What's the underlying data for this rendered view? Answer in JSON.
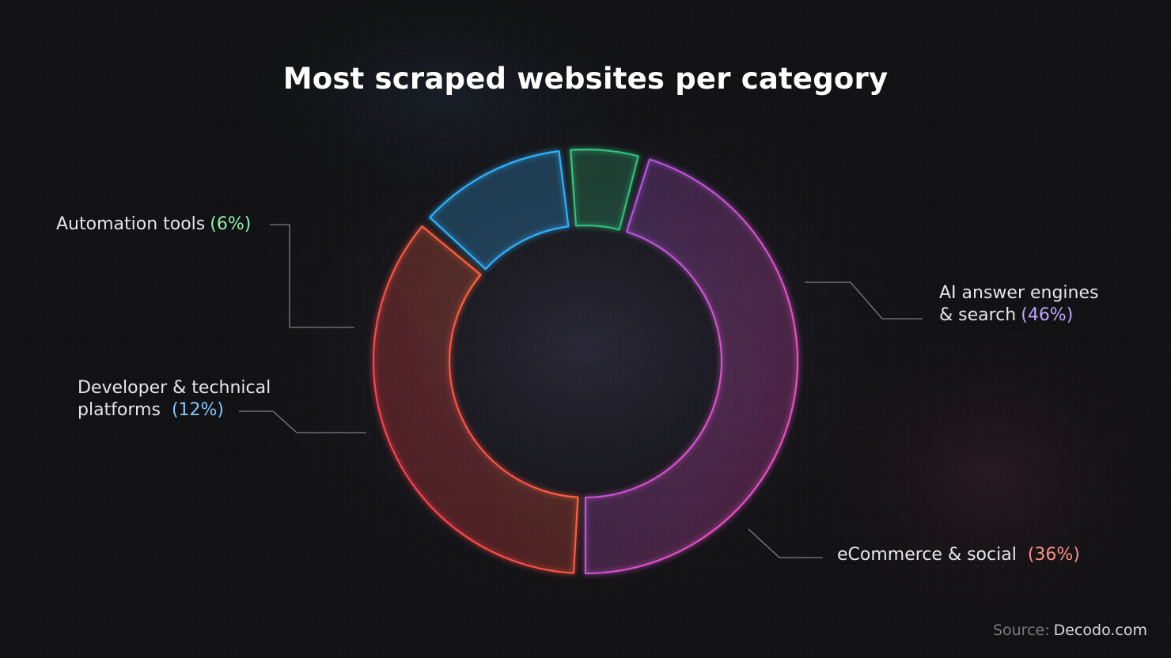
{
  "chart_data": {
    "type": "pie",
    "title": "Most scraped websites per category",
    "categories": [
      "AI answer engines & search",
      "eCommerce & social",
      "Developer & technical platforms",
      "Automation tools"
    ],
    "values": [
      46,
      36,
      12,
      6
    ],
    "unit": "%",
    "labels": [
      {
        "line1": "AI answer engines",
        "line2": "& search",
        "pct": "(46%)",
        "color": "#b9a6ff"
      },
      {
        "line1": "eCommerce & social",
        "line2": "",
        "pct": "(36%)",
        "color": "#ff8f86"
      },
      {
        "line1": "Developer & technical",
        "line2": "platforms",
        "pct": "(12%)",
        "color": "#7fc7ff"
      },
      {
        "line1": "Automation tools",
        "line2": "",
        "pct": "(6%)",
        "color": "#8ff0b3"
      }
    ],
    "colors": {
      "ai": [
        "#7c5cf7",
        "#e84fc2"
      ],
      "ecommerce": [
        "#ff9a1f",
        "#ff3f4e"
      ],
      "developer": [
        "#2fb2ff",
        "#8a5cf6"
      ],
      "automation": [
        "#3fe08f",
        "#3fe08f"
      ]
    },
    "legend": "none"
  },
  "source": {
    "label": "Source:",
    "value": "Decodo.com"
  }
}
